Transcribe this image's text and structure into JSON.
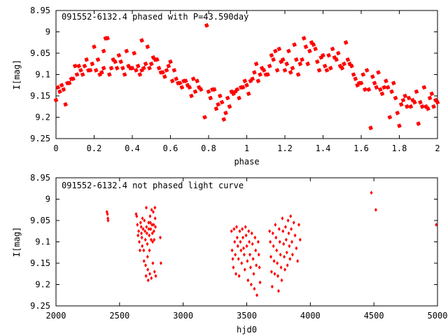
{
  "chart_data": [
    {
      "type": "scatter",
      "title": "091552-6132.4 phased with P=43.590day",
      "xlabel": "phase",
      "ylabel": "I[mag]",
      "xlim": [
        0,
        2
      ],
      "ylim": [
        8.95,
        9.25
      ],
      "y_inverted": true,
      "xticks": [
        "0",
        "0.2",
        "0.4",
        "0.6",
        "0.8",
        "1",
        "1.2",
        "1.4",
        "1.6",
        "1.8",
        "2"
      ],
      "yticks": [
        "8.95",
        "9",
        "9.05",
        "9.1",
        "9.15",
        "9.2",
        "9.25"
      ],
      "marker": "filled-star",
      "color": "#ff0000",
      "points": [
        [
          0.0,
          9.16
        ],
        [
          0.01,
          9.13
        ],
        [
          0.02,
          9.14
        ],
        [
          0.03,
          9.125
        ],
        [
          0.04,
          9.135
        ],
        [
          0.05,
          9.17
        ],
        [
          0.06,
          9.12
        ],
        [
          0.07,
          9.12
        ],
        [
          0.08,
          9.11
        ],
        [
          0.09,
          9.11
        ],
        [
          0.1,
          9.08
        ],
        [
          0.11,
          9.1
        ],
        [
          0.12,
          9.08
        ],
        [
          0.13,
          9.09
        ],
        [
          0.14,
          9.1
        ],
        [
          0.15,
          9.08
        ],
        [
          0.16,
          9.065
        ],
        [
          0.17,
          9.09
        ],
        [
          0.18,
          9.09
        ],
        [
          0.19,
          9.075
        ],
        [
          0.2,
          9.035
        ],
        [
          0.21,
          9.09
        ],
        [
          0.22,
          9.065
        ],
        [
          0.23,
          9.1
        ],
        [
          0.24,
          9.095
        ],
        [
          0.25,
          9.085
        ],
        [
          0.25,
          9.045
        ],
        [
          0.26,
          9.015
        ],
        [
          0.27,
          9.015
        ],
        [
          0.28,
          9.1
        ],
        [
          0.29,
          9.085
        ],
        [
          0.3,
          9.065
        ],
        [
          0.31,
          9.07
        ],
        [
          0.32,
          9.085
        ],
        [
          0.33,
          9.055
        ],
        [
          0.34,
          9.07
        ],
        [
          0.35,
          9.085
        ],
        [
          0.36,
          9.1
        ],
        [
          0.37,
          9.045
        ],
        [
          0.38,
          9.08
        ],
        [
          0.39,
          9.085
        ],
        [
          0.4,
          9.085
        ],
        [
          0.41,
          9.05
        ],
        [
          0.42,
          9.09
        ],
        [
          0.43,
          9.08
        ],
        [
          0.44,
          9.1
        ],
        [
          0.45,
          9.09
        ],
        [
          0.45,
          9.02
        ],
        [
          0.46,
          9.085
        ],
        [
          0.47,
          9.075
        ],
        [
          0.48,
          9.035
        ],
        [
          0.49,
          9.085
        ],
        [
          0.5,
          9.075
        ],
        [
          0.51,
          9.06
        ],
        [
          0.52,
          9.065
        ],
        [
          0.53,
          9.065
        ],
        [
          0.54,
          9.085
        ],
        [
          0.55,
          9.095
        ],
        [
          0.56,
          9.095
        ],
        [
          0.57,
          9.105
        ],
        [
          0.58,
          9.09
        ],
        [
          0.59,
          9.08
        ],
        [
          0.6,
          9.07
        ],
        [
          0.61,
          9.115
        ],
        [
          0.62,
          9.09
        ],
        [
          0.63,
          9.11
        ],
        [
          0.64,
          9.12
        ],
        [
          0.65,
          9.12
        ],
        [
          0.66,
          9.13
        ],
        [
          0.67,
          9.115
        ],
        [
          0.68,
          9.115
        ],
        [
          0.69,
          9.125
        ],
        [
          0.7,
          9.13
        ],
        [
          0.71,
          9.15
        ],
        [
          0.72,
          9.11
        ],
        [
          0.73,
          9.14
        ],
        [
          0.74,
          9.115
        ],
        [
          0.75,
          9.13
        ],
        [
          0.76,
          9.135
        ],
        [
          0.78,
          9.2
        ],
        [
          0.79,
          8.985
        ],
        [
          0.8,
          9.14
        ],
        [
          0.81,
          9.155
        ],
        [
          0.82,
          9.135
        ],
        [
          0.83,
          9.135
        ],
        [
          0.84,
          9.18
        ],
        [
          0.85,
          9.17
        ],
        [
          0.86,
          9.15
        ],
        [
          0.87,
          9.165
        ],
        [
          0.88,
          9.205
        ],
        [
          0.89,
          9.19
        ],
        [
          0.9,
          9.155
        ],
        [
          0.91,
          9.175
        ],
        [
          0.92,
          9.14
        ],
        [
          0.93,
          9.145
        ],
        [
          0.94,
          9.14
        ],
        [
          0.95,
          9.135
        ],
        [
          0.96,
          9.155
        ],
        [
          0.97,
          9.13
        ],
        [
          0.98,
          9.13
        ],
        [
          0.99,
          9.115
        ],
        [
          1.0,
          9.125
        ],
        [
          1.01,
          9.145
        ],
        [
          1.02,
          9.115
        ],
        [
          1.03,
          9.11
        ],
        [
          1.04,
          9.095
        ],
        [
          1.05,
          9.075
        ],
        [
          1.06,
          9.115
        ],
        [
          1.07,
          9.1
        ],
        [
          1.08,
          9.085
        ],
        [
          1.09,
          9.09
        ],
        [
          1.1,
          9.1
        ],
        [
          1.11,
          9.1
        ],
        [
          1.12,
          9.08
        ],
        [
          1.13,
          9.055
        ],
        [
          1.14,
          9.065
        ],
        [
          1.15,
          9.045
        ],
        [
          1.16,
          9.09
        ],
        [
          1.17,
          9.04
        ],
        [
          1.18,
          9.07
        ],
        [
          1.19,
          9.065
        ],
        [
          1.2,
          9.09
        ],
        [
          1.21,
          9.075
        ],
        [
          1.22,
          9.045
        ],
        [
          1.23,
          9.095
        ],
        [
          1.24,
          9.085
        ],
        [
          1.25,
          9.03
        ],
        [
          1.26,
          9.065
        ],
        [
          1.27,
          9.1
        ],
        [
          1.28,
          9.075
        ],
        [
          1.29,
          9.065
        ],
        [
          1.3,
          9.015
        ],
        [
          1.31,
          9.035
        ],
        [
          1.32,
          9.075
        ],
        [
          1.33,
          9.045
        ],
        [
          1.34,
          9.025
        ],
        [
          1.35,
          9.03
        ],
        [
          1.36,
          9.04
        ],
        [
          1.37,
          9.07
        ],
        [
          1.38,
          9.09
        ],
        [
          1.39,
          9.06
        ],
        [
          1.4,
          9.055
        ],
        [
          1.41,
          9.08
        ],
        [
          1.42,
          9.09
        ],
        [
          1.43,
          9.055
        ],
        [
          1.44,
          9.085
        ],
        [
          1.45,
          9.04
        ],
        [
          1.46,
          9.06
        ],
        [
          1.47,
          9.065
        ],
        [
          1.48,
          9.05
        ],
        [
          1.49,
          9.08
        ],
        [
          1.5,
          9.085
        ],
        [
          1.51,
          9.075
        ],
        [
          1.52,
          9.025
        ],
        [
          1.53,
          9.065
        ],
        [
          1.54,
          9.075
        ],
        [
          1.55,
          9.08
        ],
        [
          1.56,
          9.1
        ],
        [
          1.57,
          9.11
        ],
        [
          1.58,
          9.125
        ],
        [
          1.59,
          9.12
        ],
        [
          1.6,
          9.12
        ],
        [
          1.61,
          9.1
        ],
        [
          1.62,
          9.135
        ],
        [
          1.63,
          9.09
        ],
        [
          1.64,
          9.135
        ],
        [
          1.65,
          9.225
        ],
        [
          1.66,
          9.105
        ],
        [
          1.67,
          9.12
        ],
        [
          1.68,
          9.13
        ],
        [
          1.69,
          9.095
        ],
        [
          1.7,
          9.135
        ],
        [
          1.71,
          9.145
        ],
        [
          1.72,
          9.13
        ],
        [
          1.73,
          9.115
        ],
        [
          1.74,
          9.13
        ],
        [
          1.75,
          9.2
        ],
        [
          1.76,
          9.14
        ],
        [
          1.77,
          9.12
        ],
        [
          1.78,
          9.155
        ],
        [
          1.79,
          9.19
        ],
        [
          1.8,
          9.22
        ],
        [
          1.81,
          9.17
        ],
        [
          1.82,
          9.16
        ],
        [
          1.83,
          9.15
        ],
        [
          1.84,
          9.175
        ],
        [
          1.85,
          9.155
        ],
        [
          1.86,
          9.175
        ],
        [
          1.87,
          9.16
        ],
        [
          1.88,
          9.165
        ],
        [
          1.89,
          9.14
        ],
        [
          1.9,
          9.215
        ],
        [
          1.91,
          9.165
        ],
        [
          1.92,
          9.175
        ],
        [
          1.93,
          9.13
        ],
        [
          1.94,
          9.175
        ],
        [
          1.95,
          9.18
        ],
        [
          1.96,
          9.155
        ],
        [
          1.97,
          9.145
        ],
        [
          1.98,
          9.175
        ],
        [
          1.99,
          9.16
        ],
        [
          2.0,
          9.165
        ]
      ]
    },
    {
      "type": "scatter",
      "title": "091552-6132.4 not phased light curve",
      "xlabel": "hjd0",
      "ylabel": "I[mag]",
      "xlim": [
        2000,
        5000
      ],
      "ylim": [
        8.95,
        9.25
      ],
      "y_inverted": true,
      "xticks": [
        "2000",
        "2500",
        "3000",
        "3500",
        "4000",
        "4500",
        "5000"
      ],
      "yticks": [
        "8.95",
        "9",
        "9.05",
        "9.1",
        "9.15",
        "9.2",
        "9.25"
      ],
      "marker": "small-diamond",
      "color": "#ff0000",
      "points": [
        [
          2400,
          9.03
        ],
        [
          2405,
          9.035
        ],
        [
          2408,
          9.045
        ],
        [
          2410,
          9.05
        ],
        [
          2630,
          9.035
        ],
        [
          2635,
          9.04
        ],
        [
          2640,
          9.06
        ],
        [
          2645,
          9.085
        ],
        [
          2650,
          9.075
        ],
        [
          2655,
          9.1
        ],
        [
          2660,
          9.12
        ],
        [
          2665,
          9.055
        ],
        [
          2670,
          9.065
        ],
        [
          2672,
          9.08
        ],
        [
          2675,
          9.09
        ],
        [
          2678,
          9.11
        ],
        [
          2680,
          9.045
        ],
        [
          2685,
          9.07
        ],
        [
          2690,
          9.12
        ],
        [
          2692,
          9.145
        ],
        [
          2695,
          9.05
        ],
        [
          2700,
          9.075
        ],
        [
          2703,
          9.095
        ],
        [
          2705,
          9.155
        ],
        [
          2708,
          9.18
        ],
        [
          2710,
          9.02
        ],
        [
          2712,
          9.065
        ],
        [
          2715,
          9.08
        ],
        [
          2718,
          9.105
        ],
        [
          2720,
          9.135
        ],
        [
          2722,
          9.165
        ],
        [
          2725,
          9.19
        ],
        [
          2728,
          9.055
        ],
        [
          2730,
          9.07
        ],
        [
          2733,
          9.085
        ],
        [
          2735,
          9.12
        ],
        [
          2738,
          9.175
        ],
        [
          2740,
          9.04
        ],
        [
          2742,
          9.055
        ],
        [
          2745,
          9.07
        ],
        [
          2748,
          9.095
        ],
        [
          2750,
          9.185
        ],
        [
          2752,
          9.025
        ],
        [
          2755,
          9.06
        ],
        [
          2758,
          9.08
        ],
        [
          2760,
          9.1
        ],
        [
          2762,
          9.15
        ],
        [
          2765,
          9.03
        ],
        [
          2768,
          9.06
        ],
        [
          2770,
          9.075
        ],
        [
          2772,
          9.095
        ],
        [
          2775,
          9.17
        ],
        [
          2778,
          9.02
        ],
        [
          2780,
          9.045
        ],
        [
          2782,
          9.065
        ],
        [
          2785,
          9.18
        ],
        [
          2820,
          9.09
        ],
        [
          2825,
          9.15
        ],
        [
          3380,
          9.075
        ],
        [
          3385,
          9.12
        ],
        [
          3390,
          9.14
        ],
        [
          3395,
          9.16
        ],
        [
          3400,
          9.07
        ],
        [
          3405,
          9.1
        ],
        [
          3410,
          9.13
        ],
        [
          3415,
          9.175
        ],
        [
          3420,
          9.065
        ],
        [
          3425,
          9.09
        ],
        [
          3430,
          9.11
        ],
        [
          3435,
          9.14
        ],
        [
          3440,
          9.18
        ],
        [
          3445,
          9.075
        ],
        [
          3450,
          9.1
        ],
        [
          3455,
          9.12
        ],
        [
          3460,
          9.15
        ],
        [
          3465,
          9.07
        ],
        [
          3470,
          9.09
        ],
        [
          3475,
          9.115
        ],
        [
          3480,
          9.13
        ],
        [
          3485,
          9.165
        ],
        [
          3490,
          9.065
        ],
        [
          3495,
          9.085
        ],
        [
          3500,
          9.11
        ],
        [
          3505,
          9.145
        ],
        [
          3510,
          9.19
        ],
        [
          3515,
          9.075
        ],
        [
          3520,
          9.1
        ],
        [
          3525,
          9.13
        ],
        [
          3530,
          9.16
        ],
        [
          3535,
          9.2
        ],
        [
          3540,
          9.08
        ],
        [
          3545,
          9.105
        ],
        [
          3550,
          9.14
        ],
        [
          3555,
          9.175
        ],
        [
          3560,
          9.21
        ],
        [
          3565,
          9.09
        ],
        [
          3570,
          9.12
        ],
        [
          3575,
          9.155
        ],
        [
          3580,
          9.225
        ],
        [
          3590,
          9.1
        ],
        [
          3595,
          9.13
        ],
        [
          3600,
          9.16
        ],
        [
          3605,
          9.195
        ],
        [
          3680,
          9.075
        ],
        [
          3685,
          9.1
        ],
        [
          3690,
          9.135
        ],
        [
          3695,
          9.17
        ],
        [
          3700,
          9.205
        ],
        [
          3705,
          9.08
        ],
        [
          3710,
          9.11
        ],
        [
          3715,
          9.145
        ],
        [
          3720,
          9.175
        ],
        [
          3725,
          9.06
        ],
        [
          3730,
          9.09
        ],
        [
          3735,
          9.12
        ],
        [
          3740,
          9.15
        ],
        [
          3745,
          9.18
        ],
        [
          3750,
          9.215
        ],
        [
          3755,
          9.07
        ],
        [
          3760,
          9.1
        ],
        [
          3765,
          9.13
        ],
        [
          3770,
          9.16
        ],
        [
          3775,
          9.19
        ],
        [
          3780,
          9.045
        ],
        [
          3785,
          9.075
        ],
        [
          3790,
          9.105
        ],
        [
          3795,
          9.135
        ],
        [
          3800,
          9.165
        ],
        [
          3805,
          9.065
        ],
        [
          3810,
          9.095
        ],
        [
          3815,
          9.125
        ],
        [
          3820,
          9.155
        ],
        [
          3825,
          9.05
        ],
        [
          3830,
          9.08
        ],
        [
          3835,
          9.11
        ],
        [
          3840,
          9.14
        ],
        [
          3845,
          9.04
        ],
        [
          3850,
          9.07
        ],
        [
          3855,
          9.1
        ],
        [
          3860,
          9.13
        ],
        [
          3870,
          9.055
        ],
        [
          3880,
          9.085
        ],
        [
          3890,
          9.115
        ],
        [
          3900,
          9.145
        ],
        [
          3910,
          9.06
        ],
        [
          3920,
          9.095
        ],
        [
          4480,
          8.985
        ],
        [
          4515,
          9.025
        ],
        [
          4990,
          9.06
        ]
      ]
    }
  ]
}
